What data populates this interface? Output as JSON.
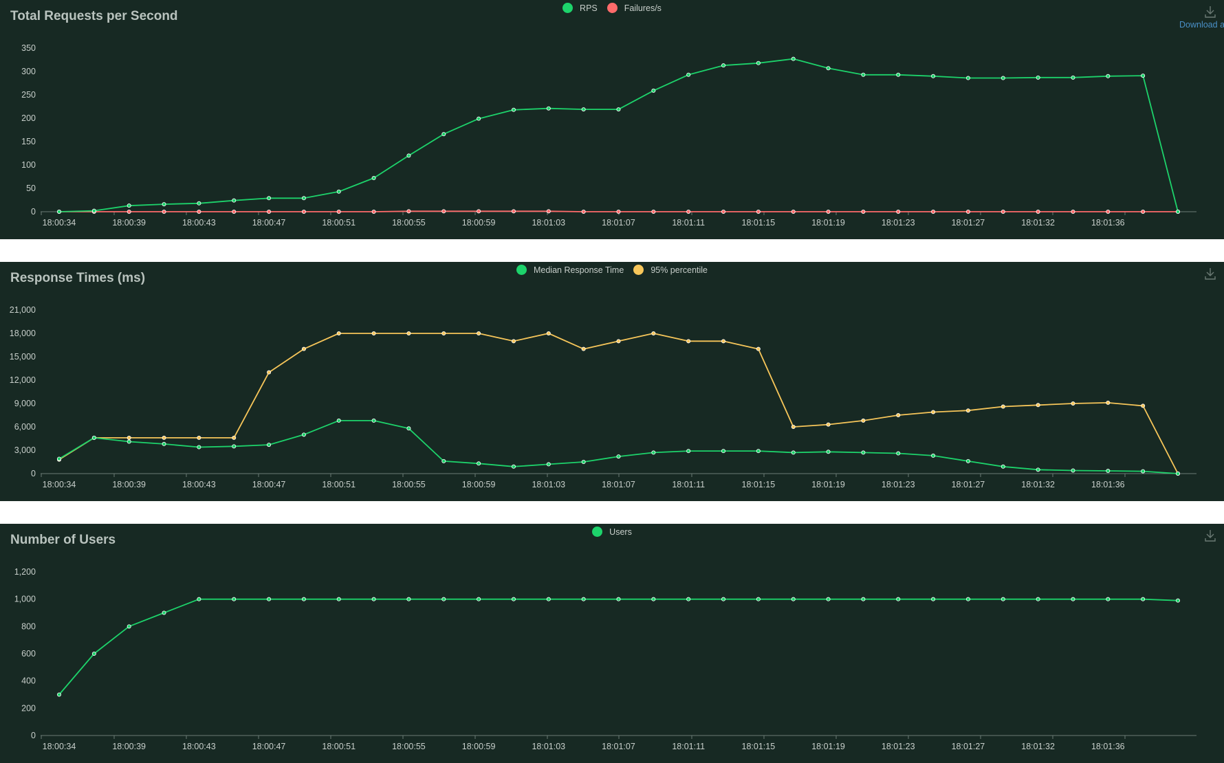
{
  "colors": {
    "panel_bg": "#172923",
    "page_bg": "#ffffff",
    "rps": "#1dd36b",
    "failures": "#ff6b6b",
    "median": "#1dd36b",
    "p95": "#f7c65a",
    "users": "#1dd36b",
    "axis": "#6b7a74",
    "text": "#c8cfcb",
    "link": "#4a90c8"
  },
  "download_link": "Download a",
  "icons": {
    "download": "download-icon"
  },
  "charts": [
    {
      "title": "Total Requests per Second"
    },
    {
      "title": "Response Times (ms)"
    },
    {
      "title": "Number of Users"
    }
  ],
  "chart_data": [
    {
      "type": "line",
      "title": "Total Requests per Second",
      "x": [
        "18:00:34",
        "18:00:36",
        "18:00:38",
        "18:00:40",
        "18:00:42",
        "18:00:44",
        "18:00:46",
        "18:00:48",
        "18:00:50",
        "18:00:52",
        "18:00:54",
        "18:00:56",
        "18:00:58",
        "18:01:00",
        "18:01:02",
        "18:01:04",
        "18:01:06",
        "18:01:08",
        "18:01:10",
        "18:01:12",
        "18:01:14",
        "18:01:16",
        "18:01:18",
        "18:01:20",
        "18:01:22",
        "18:01:24",
        "18:01:26",
        "18:01:28",
        "18:01:30",
        "18:01:32",
        "18:01:34",
        "18:01:36",
        "18:01:38"
      ],
      "xticks": [
        "18:00:34",
        "18:00:39",
        "18:00:43",
        "18:00:47",
        "18:00:51",
        "18:00:55",
        "18:00:59",
        "18:01:03",
        "18:01:07",
        "18:01:11",
        "18:01:15",
        "18:01:19",
        "18:01:23",
        "18:01:27",
        "18:01:32",
        "18:01:36"
      ],
      "yticks": [
        "0",
        "50",
        "100",
        "150",
        "200",
        "250",
        "300",
        "350"
      ],
      "ylim": [
        0,
        350
      ],
      "legend_position": "top-center",
      "series": [
        {
          "name": "RPS",
          "values": [
            0,
            2,
            13,
            16,
            18,
            24,
            29,
            29,
            43,
            72,
            120,
            166,
            199,
            218,
            221,
            219,
            219,
            259,
            293,
            313,
            318,
            327,
            307,
            293,
            293,
            290,
            286,
            286,
            287,
            287,
            290,
            291,
            0
          ]
        },
        {
          "name": "Failures/s",
          "values": [
            0,
            0,
            0,
            0,
            0,
            0,
            0,
            0,
            0,
            0,
            1,
            1,
            1,
            1,
            1,
            0,
            0,
            0,
            0,
            0,
            0,
            0,
            0,
            0,
            0,
            0,
            0,
            0,
            0,
            0,
            0,
            0,
            0
          ]
        }
      ]
    },
    {
      "type": "line",
      "title": "Response Times (ms)",
      "x": [
        "18:00:34",
        "18:00:36",
        "18:00:38",
        "18:00:40",
        "18:00:42",
        "18:00:44",
        "18:00:46",
        "18:00:48",
        "18:00:50",
        "18:00:52",
        "18:00:54",
        "18:00:56",
        "18:00:58",
        "18:01:00",
        "18:01:02",
        "18:01:04",
        "18:01:06",
        "18:01:08",
        "18:01:10",
        "18:01:12",
        "18:01:14",
        "18:01:16",
        "18:01:18",
        "18:01:20",
        "18:01:22",
        "18:01:24",
        "18:01:26",
        "18:01:28",
        "18:01:30",
        "18:01:32",
        "18:01:34",
        "18:01:36",
        "18:01:38"
      ],
      "xticks": [
        "18:00:34",
        "18:00:39",
        "18:00:43",
        "18:00:47",
        "18:00:51",
        "18:00:55",
        "18:00:59",
        "18:01:03",
        "18:01:07",
        "18:01:11",
        "18:01:15",
        "18:01:19",
        "18:01:23",
        "18:01:27",
        "18:01:32",
        "18:01:36"
      ],
      "yticks": [
        "0",
        "3,000",
        "6,000",
        "9,000",
        "12,000",
        "15,000",
        "18,000",
        "21,000"
      ],
      "ylim": [
        0,
        21000
      ],
      "legend_position": "top-center",
      "series": [
        {
          "name": "Median Response Time",
          "values": [
            1900,
            4600,
            4100,
            3800,
            3400,
            3500,
            3700,
            5000,
            6800,
            6800,
            5800,
            1600,
            1300,
            900,
            1200,
            1500,
            2200,
            2700,
            2900,
            2900,
            2900,
            2700,
            2800,
            2700,
            2600,
            2300,
            1600,
            900,
            500,
            400,
            350,
            300,
            0
          ]
        },
        {
          "name": "95% percentile",
          "values": [
            1800,
            4600,
            4600,
            4600,
            4600,
            4600,
            13000,
            16000,
            18000,
            18000,
            18000,
            18000,
            18000,
            17000,
            18000,
            16000,
            17000,
            18000,
            17000,
            17000,
            16000,
            6000,
            6300,
            6800,
            7500,
            7900,
            8100,
            8600,
            8800,
            9000,
            9100,
            8700,
            0
          ]
        }
      ]
    },
    {
      "type": "line",
      "title": "Number of Users",
      "x": [
        "18:00:34",
        "18:00:36",
        "18:00:38",
        "18:00:40",
        "18:00:42",
        "18:00:44",
        "18:00:46",
        "18:00:48",
        "18:00:50",
        "18:00:52",
        "18:00:54",
        "18:00:56",
        "18:00:58",
        "18:01:00",
        "18:01:02",
        "18:01:04",
        "18:01:06",
        "18:01:08",
        "18:01:10",
        "18:01:12",
        "18:01:14",
        "18:01:16",
        "18:01:18",
        "18:01:20",
        "18:01:22",
        "18:01:24",
        "18:01:26",
        "18:01:28",
        "18:01:30",
        "18:01:32",
        "18:01:34",
        "18:01:36",
        "18:01:38"
      ],
      "xticks": [
        "18:00:34",
        "18:00:39",
        "18:00:43",
        "18:00:47",
        "18:00:51",
        "18:00:55",
        "18:00:59",
        "18:01:03",
        "18:01:07",
        "18:01:11",
        "18:01:15",
        "18:01:19",
        "18:01:23",
        "18:01:27",
        "18:01:32",
        "18:01:36"
      ],
      "yticks": [
        "0",
        "200",
        "400",
        "600",
        "800",
        "1,000",
        "1,200"
      ],
      "ylim": [
        0,
        1200
      ],
      "legend_position": "top-center",
      "series": [
        {
          "name": "Users",
          "values": [
            300,
            600,
            800,
            900,
            1000,
            1000,
            1000,
            1000,
            1000,
            1000,
            1000,
            1000,
            1000,
            1000,
            1000,
            1000,
            1000,
            1000,
            1000,
            1000,
            1000,
            1000,
            1000,
            1000,
            1000,
            1000,
            1000,
            1000,
            1000,
            1000,
            1000,
            1000,
            990
          ]
        }
      ]
    }
  ]
}
